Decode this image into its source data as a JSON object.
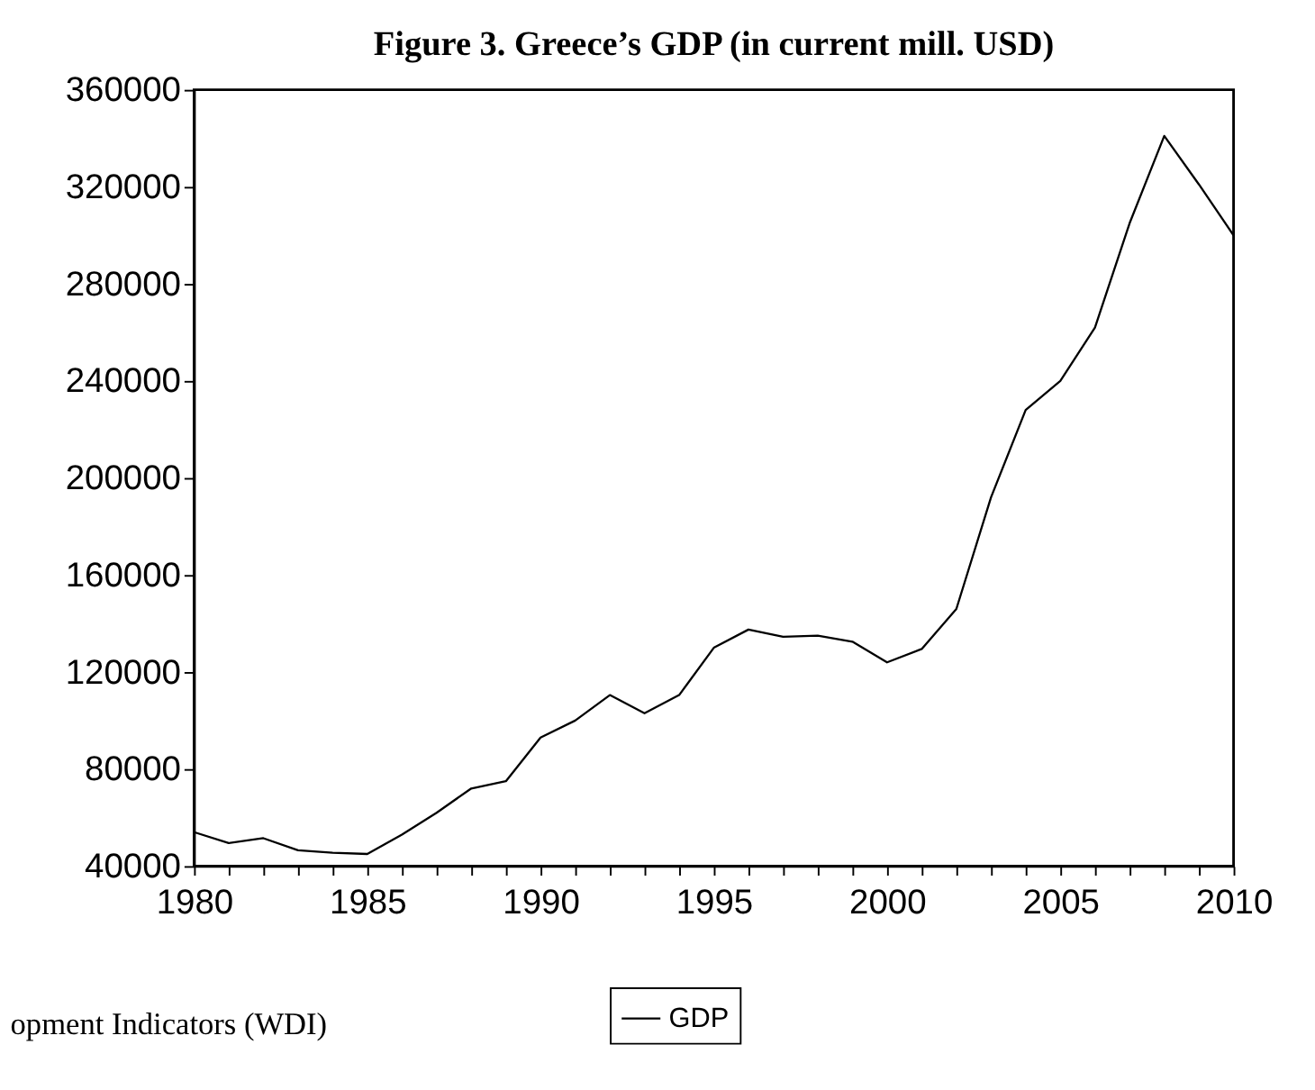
{
  "chart_data": {
    "type": "line",
    "title": "Figure 3. Greece’s GDP (in current mill. USD)",
    "x": [
      1980,
      1981,
      1982,
      1983,
      1984,
      1985,
      1986,
      1987,
      1988,
      1989,
      1990,
      1991,
      1992,
      1993,
      1994,
      1995,
      1996,
      1997,
      1998,
      1999,
      2000,
      2001,
      2002,
      2003,
      2004,
      2005,
      2006,
      2007,
      2008,
      2009,
      2010
    ],
    "series": [
      {
        "name": "GDP",
        "color": "#000000",
        "values": [
          54000,
          49500,
          51500,
          46500,
          45500,
          45000,
          53000,
          62000,
          72000,
          75000,
          93000,
          100000,
          110500,
          103000,
          110500,
          130000,
          137500,
          134500,
          135000,
          132500,
          124000,
          129500,
          146000,
          192000,
          228000,
          240000,
          262000,
          305000,
          341000,
          321000,
          300000
        ]
      }
    ],
    "xlim": [
      1980,
      2010
    ],
    "xticks": [
      1980,
      {
        "value": 1981,
        "label": null
      },
      {
        "value": 1982,
        "label": null
      },
      {
        "value": 1983,
        "label": null
      },
      {
        "value": 1984,
        "label": null
      },
      1985,
      {
        "value": 1986,
        "label": null
      },
      {
        "value": 1987,
        "label": null
      },
      {
        "value": 1988,
        "label": null
      },
      {
        "value": 1989,
        "label": null
      },
      1990,
      {
        "value": 1991,
        "label": null
      },
      {
        "value": 1992,
        "label": null
      },
      {
        "value": 1993,
        "label": null
      },
      {
        "value": 1994,
        "label": null
      },
      1995,
      {
        "value": 1996,
        "label": null
      },
      {
        "value": 1997,
        "label": null
      },
      {
        "value": 1998,
        "label": null
      },
      {
        "value": 1999,
        "label": null
      },
      2000,
      {
        "value": 2001,
        "label": null
      },
      {
        "value": 2002,
        "label": null
      },
      {
        "value": 2003,
        "label": null
      },
      {
        "value": 2004,
        "label": null
      },
      2005,
      {
        "value": 2006,
        "label": null
      },
      {
        "value": 2007,
        "label": null
      },
      {
        "value": 2008,
        "label": null
      },
      {
        "value": 2009,
        "label": null
      },
      2010
    ],
    "ylim": [
      40000,
      360000
    ],
    "yticks": [
      40000,
      80000,
      120000,
      160000,
      200000,
      240000,
      280000,
      320000,
      360000
    ],
    "grid": false,
    "legend": "bottom",
    "marker": "none",
    "line_style": "solid",
    "annotations": [
      "opment Indicators (WDI)"
    ]
  }
}
